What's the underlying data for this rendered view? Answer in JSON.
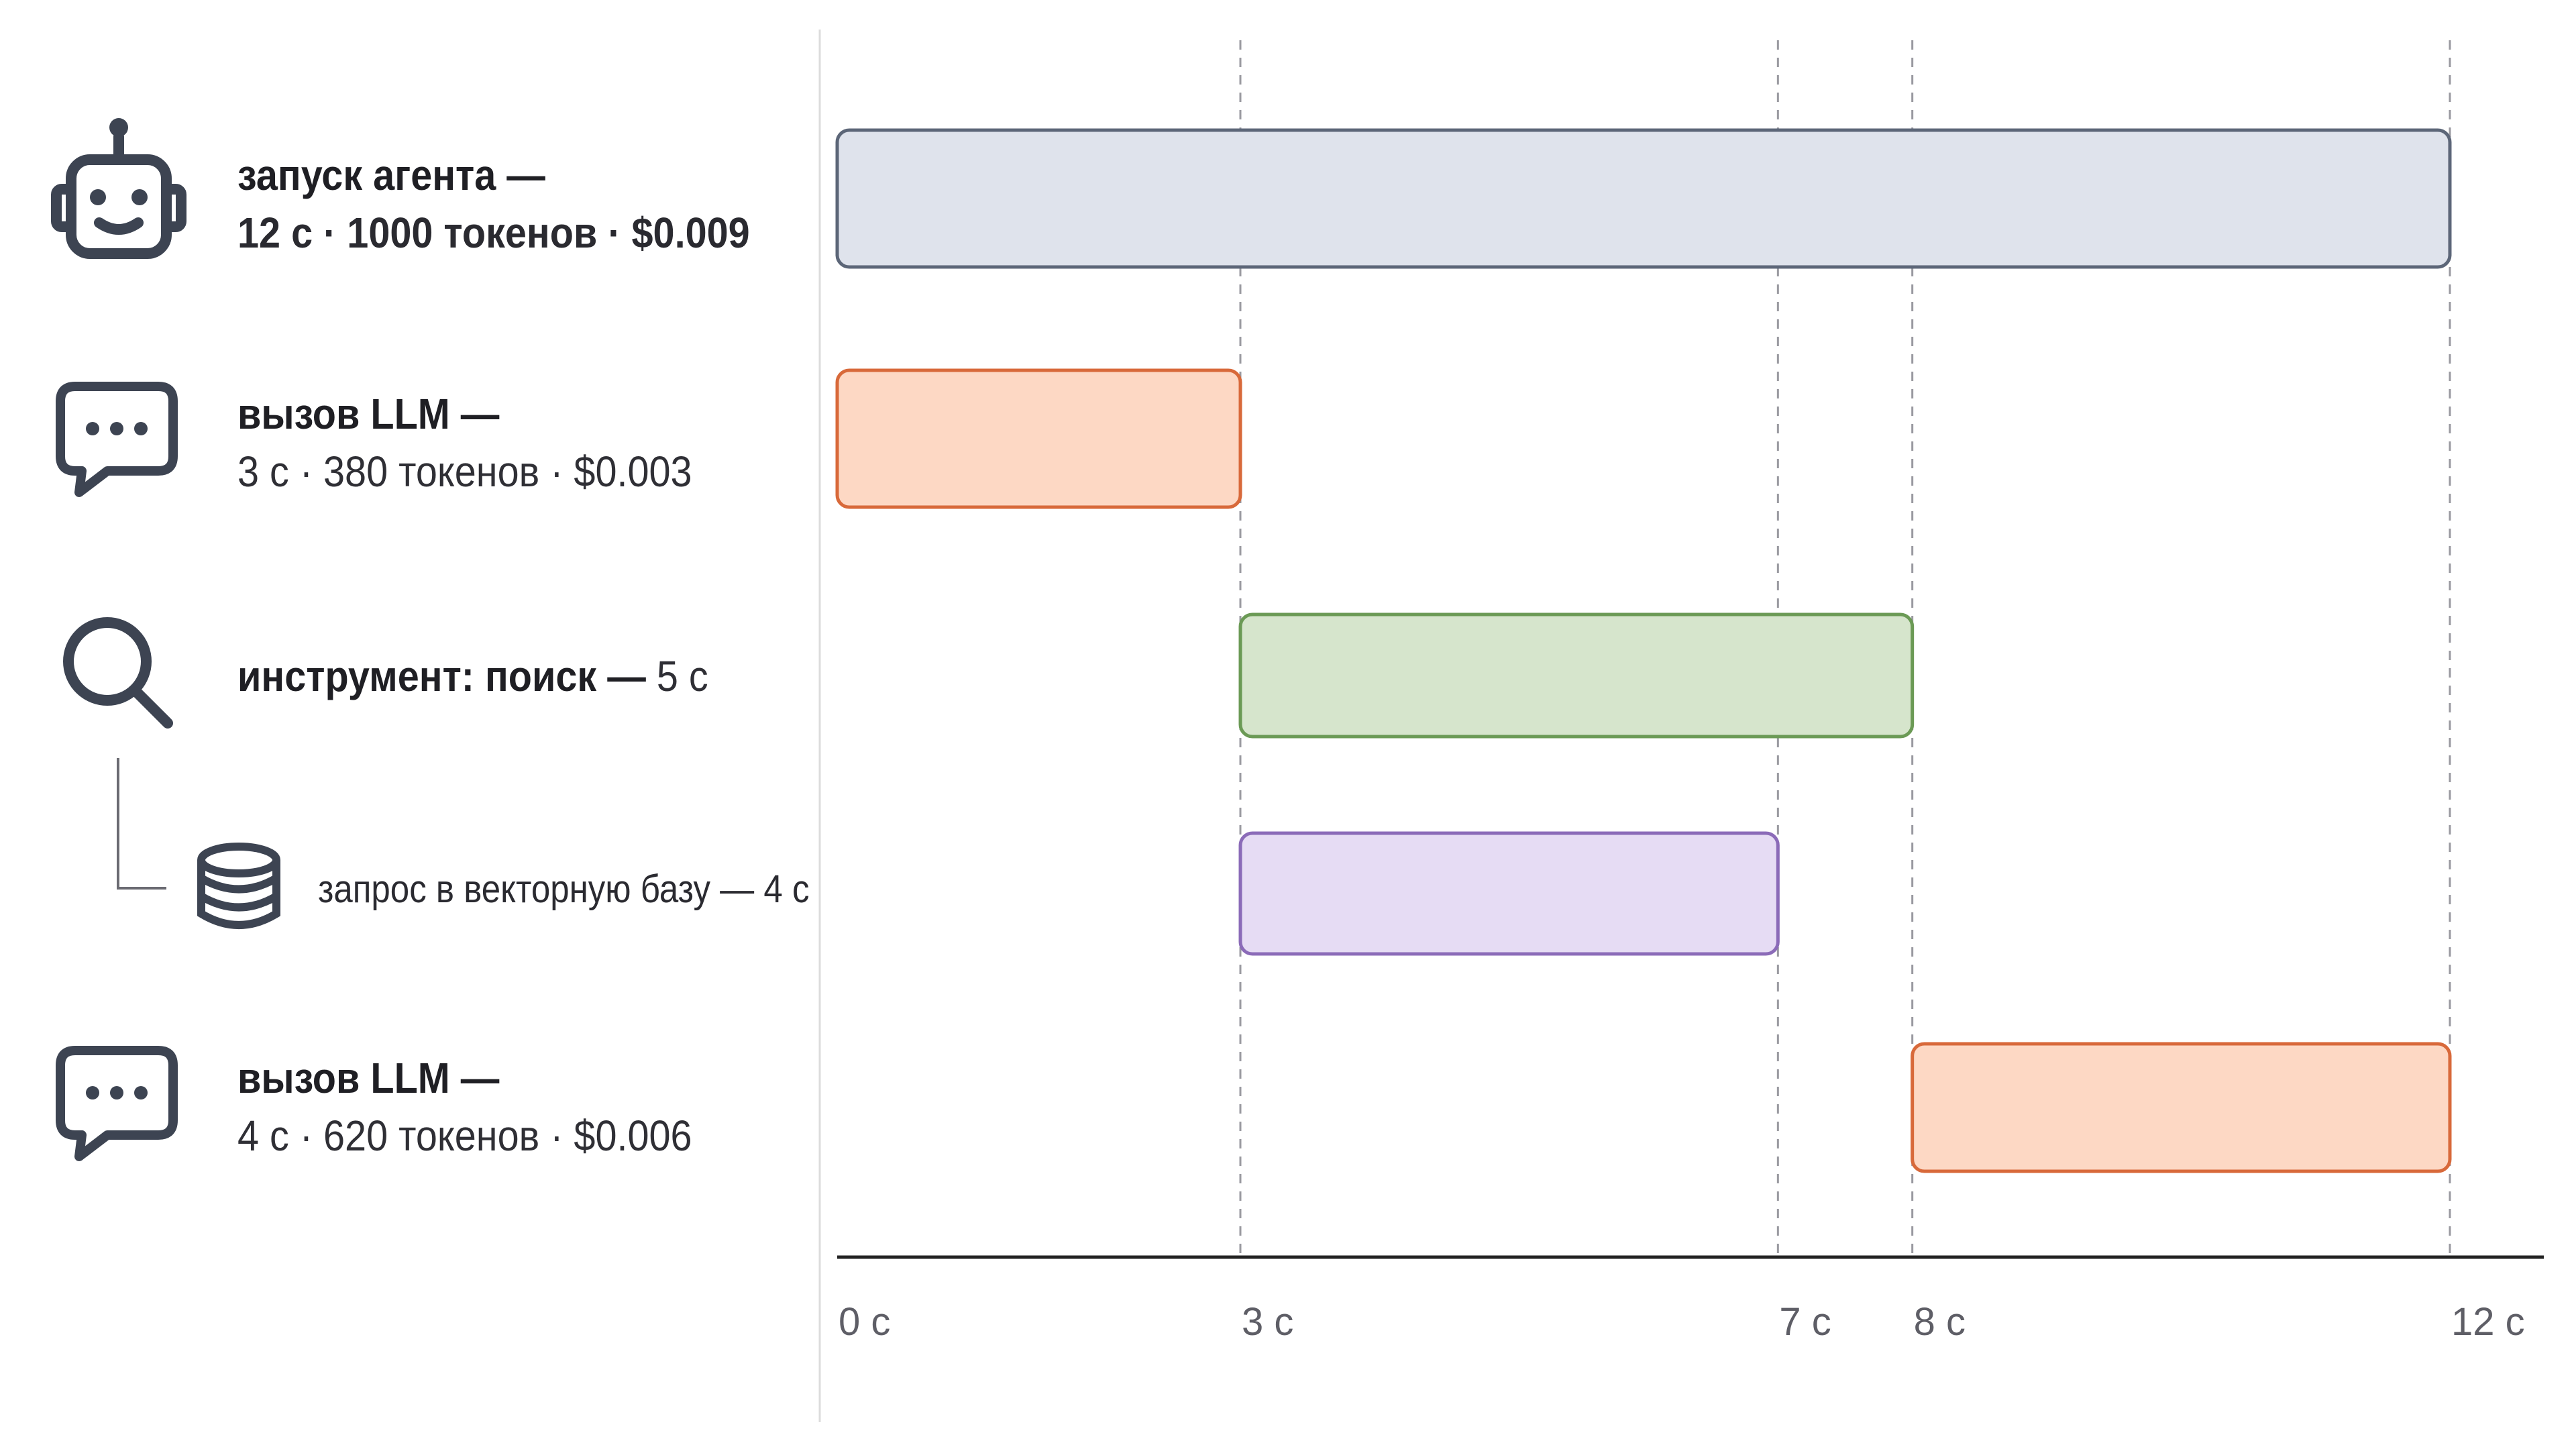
{
  "rows": [
    {
      "id": "agent-run",
      "icon": "robot-icon",
      "title": "запуск агента —",
      "detail": "12 с · 1000 токенов · $0.009",
      "start": 0,
      "end": 12,
      "fill": "#dfe3ec",
      "stroke": "#5c6678"
    },
    {
      "id": "llm-call-1",
      "icon": "chat-bubble-icon",
      "title": "вызов LLM —",
      "detail": "3 с · 380 токенов · $0.003",
      "start": 0,
      "end": 3,
      "fill": "#fdd8c4",
      "stroke": "#d8693a"
    },
    {
      "id": "tool-search",
      "icon": "search-icon",
      "title": "инструмент: поиск —",
      "detail": "5 с",
      "start": 3,
      "end": 8,
      "fill": "#d6e5cc",
      "stroke": "#6b9a55"
    },
    {
      "id": "vector-db-query",
      "icon": "database-icon",
      "title": "запрос в векторную базу — 4 с",
      "detail": "",
      "start": 3,
      "end": 7,
      "fill": "#e6dcf4",
      "stroke": "#8b6bb8"
    },
    {
      "id": "llm-call-2",
      "icon": "chat-bubble-icon",
      "title": "вызов LLM —",
      "detail": "4 с · 620 токенов · $0.006",
      "start": 8,
      "end": 12,
      "fill": "#fdd8c4",
      "stroke": "#d8693a"
    }
  ],
  "axis": {
    "ticks": [
      {
        "value": 0,
        "label": "0 с"
      },
      {
        "value": 3,
        "label": "3 с"
      },
      {
        "value": 7,
        "label": "7 с"
      },
      {
        "value": 8,
        "label": "8 с"
      },
      {
        "value": 12,
        "label": "12 с"
      }
    ],
    "min": 0,
    "max": 12,
    "gridlines": true
  },
  "colors": {
    "icon": "#3d4452",
    "axis": "#222222",
    "grid": "#9a9aa0",
    "divider": "#dcdcdc"
  }
}
